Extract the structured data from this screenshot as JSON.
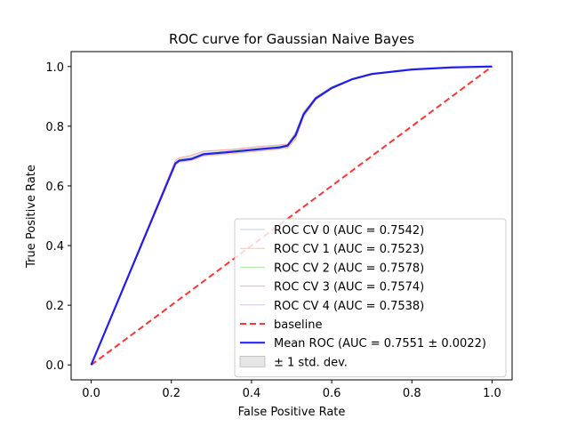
{
  "chart_data": {
    "type": "line",
    "title": "ROC curve for Gaussian Naive Bayes",
    "xlabel": "False Positive Rate",
    "ylabel": "True Positive Rate",
    "xlim": [
      -0.05,
      1.05
    ],
    "ylim": [
      -0.05,
      1.05
    ],
    "xticks": [
      "0.0",
      "0.2",
      "0.4",
      "0.6",
      "0.8",
      "1.0"
    ],
    "yticks": [
      "0.0",
      "0.2",
      "0.4",
      "0.6",
      "0.8",
      "1.0"
    ],
    "grid": false,
    "legend_position": "lower-right",
    "series": [
      {
        "name": "ROC CV 0 (AUC = 0.7542)",
        "color": "#aec7e8",
        "role": "fold",
        "x": [
          0,
          0.21,
          0.22,
          0.25,
          0.28,
          0.35,
          0.42,
          0.47,
          0.49,
          0.51,
          0.53,
          0.56,
          0.6,
          0.65,
          0.7,
          0.8,
          0.9,
          1.0
        ],
        "y": [
          0,
          0.672,
          0.682,
          0.688,
          0.703,
          0.712,
          0.72,
          0.726,
          0.733,
          0.77,
          0.84,
          0.893,
          0.928,
          0.956,
          0.975,
          0.99,
          0.997,
          1.0
        ]
      },
      {
        "name": "ROC CV 1 (AUC = 0.7523)",
        "color": "#ffbb78",
        "role": "fold",
        "x": [
          0,
          0.21,
          0.22,
          0.25,
          0.28,
          0.35,
          0.42,
          0.47,
          0.49,
          0.51,
          0.53,
          0.56,
          0.6,
          0.65,
          0.7,
          0.8,
          0.9,
          1.0
        ],
        "y": [
          0,
          0.67,
          0.68,
          0.685,
          0.7,
          0.708,
          0.717,
          0.723,
          0.728,
          0.755,
          0.83,
          0.888,
          0.925,
          0.955,
          0.973,
          0.989,
          0.996,
          1.0
        ]
      },
      {
        "name": "ROC CV 2 (AUC = 0.7578)",
        "color": "#98df8a",
        "role": "fold",
        "x": [
          0,
          0.21,
          0.22,
          0.25,
          0.28,
          0.35,
          0.42,
          0.47,
          0.49,
          0.51,
          0.53,
          0.56,
          0.6,
          0.65,
          0.7,
          0.8,
          0.9,
          1.0
        ],
        "y": [
          0,
          0.677,
          0.688,
          0.694,
          0.708,
          0.718,
          0.726,
          0.732,
          0.738,
          0.78,
          0.848,
          0.898,
          0.932,
          0.959,
          0.977,
          0.991,
          0.997,
          1.0
        ]
      },
      {
        "name": "ROC CV 3 (AUC = 0.7574)",
        "color": "#ff9896",
        "role": "fold",
        "x": [
          0,
          0.21,
          0.22,
          0.25,
          0.28,
          0.35,
          0.42,
          0.47,
          0.49,
          0.51,
          0.53,
          0.56,
          0.6,
          0.65,
          0.7,
          0.8,
          0.9,
          1.0
        ],
        "y": [
          0,
          0.685,
          0.694,
          0.702,
          0.716,
          0.722,
          0.732,
          0.737,
          0.74,
          0.775,
          0.845,
          0.896,
          0.93,
          0.957,
          0.976,
          0.99,
          0.997,
          1.0
        ]
      },
      {
        "name": "ROC CV 4 (AUC = 0.7538)",
        "color": "#c5b0d5",
        "role": "fold",
        "x": [
          0,
          0.21,
          0.22,
          0.25,
          0.28,
          0.35,
          0.42,
          0.47,
          0.49,
          0.51,
          0.53,
          0.56,
          0.6,
          0.65,
          0.7,
          0.8,
          0.9,
          1.0
        ],
        "y": [
          0,
          0.672,
          0.682,
          0.689,
          0.704,
          0.712,
          0.722,
          0.727,
          0.732,
          0.765,
          0.838,
          0.891,
          0.927,
          0.956,
          0.974,
          0.99,
          0.996,
          1.0
        ]
      },
      {
        "name": "baseline",
        "color": "#ff0000",
        "role": "baseline",
        "x": [
          0,
          1
        ],
        "y": [
          0,
          1
        ]
      },
      {
        "name": "Mean ROC (AUC = 0.7551 ± 0.0022)",
        "color": "#0000ff",
        "role": "mean",
        "x": [
          0,
          0.21,
          0.22,
          0.25,
          0.28,
          0.35,
          0.42,
          0.47,
          0.49,
          0.51,
          0.53,
          0.56,
          0.6,
          0.65,
          0.7,
          0.8,
          0.9,
          1.0
        ],
        "y": [
          0,
          0.675,
          0.685,
          0.69,
          0.706,
          0.714,
          0.723,
          0.729,
          0.735,
          0.77,
          0.84,
          0.893,
          0.928,
          0.957,
          0.975,
          0.99,
          0.997,
          1.0
        ]
      }
    ],
    "band": {
      "name": "± 1 std. dev.",
      "color": "#808080",
      "opacity": 0.2,
      "x": [
        0,
        0.21,
        0.22,
        0.25,
        0.28,
        0.35,
        0.42,
        0.47,
        0.49,
        0.51,
        0.53,
        0.56,
        0.6,
        0.65,
        0.7,
        0.8,
        0.9,
        1.0
      ],
      "lower": [
        0,
        0.668,
        0.678,
        0.683,
        0.698,
        0.706,
        0.715,
        0.721,
        0.725,
        0.752,
        0.828,
        0.887,
        0.924,
        0.954,
        0.972,
        0.988,
        0.996,
        1.0
      ],
      "upper": [
        0,
        0.687,
        0.696,
        0.704,
        0.718,
        0.724,
        0.734,
        0.739,
        0.742,
        0.783,
        0.85,
        0.9,
        0.934,
        0.96,
        0.978,
        0.992,
        0.998,
        1.0
      ]
    }
  }
}
